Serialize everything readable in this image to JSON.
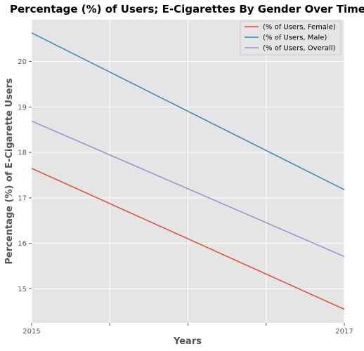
{
  "chart_data": {
    "type": "line",
    "title": "Percentage (%) of Users; E-Cigarettes By Gender Over Time",
    "xlabel": "Years",
    "ylabel": "Percentage (%) of E-Cigarette Users",
    "x": [
      2015,
      2017
    ],
    "x_tick_labels": [
      "2015",
      "2017"
    ],
    "xlim": [
      2015,
      2017
    ],
    "ylim": [
      14.25,
      20.92
    ],
    "y_ticks": [
      15,
      16,
      17,
      18,
      19,
      20
    ],
    "grid": true,
    "legend_position": "top-right",
    "series": [
      {
        "name": "(% of Users, Female)",
        "color": "#E24A33",
        "values": [
          17.65,
          14.55
        ]
      },
      {
        "name": "(% of Users, Male)",
        "color": "#348ABD",
        "values": [
          20.63,
          17.18
        ]
      },
      {
        "name": "(% of Users, Overall)",
        "color": "#988ED5",
        "values": [
          18.69,
          15.71
        ]
      }
    ]
  }
}
